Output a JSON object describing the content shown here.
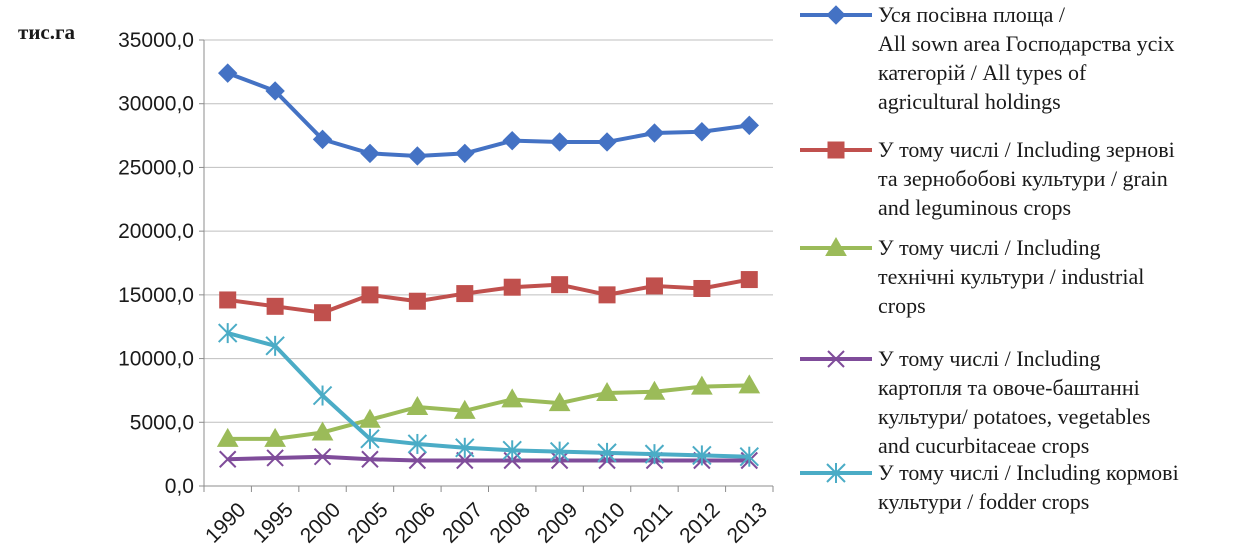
{
  "chart_data": {
    "type": "line",
    "title": "",
    "xlabel": "",
    "ylabel": "тис.га",
    "ylim": [
      0,
      35000
    ],
    "yticks": [
      "0,0",
      "5000,0",
      "10000,0",
      "15000,0",
      "20000,0",
      "25000,0",
      "30000,0",
      "35000,0"
    ],
    "grid": true,
    "legend_position": "right",
    "categories": [
      "1990",
      "1995",
      "2000",
      "2005",
      "2006",
      "2007",
      "2008",
      "2009",
      "2010",
      "2011",
      "2012",
      "2013"
    ],
    "series": [
      {
        "name": "Уся посівна площа / All sown area Господарства усіх категорій / All types of agricultural holdings",
        "legend_lines": [
          "Уся посівна площа /",
          "All sown area Господарства усіх",
          "категорій / All types of",
          "agricultural holdings"
        ],
        "color": "#4472C4",
        "marker": "diamond",
        "values": [
          32400,
          31000,
          27200,
          26100,
          25900,
          26100,
          27100,
          27000,
          27000,
          27700,
          27800,
          28300
        ]
      },
      {
        "name": "У тому числі / Including зернові та зернобобові культури / grain and leguminous crops",
        "legend_lines": [
          "У тому числі / Including зернові",
          "та зернобобові культури  / grain",
          "and leguminous crops"
        ],
        "color": "#C0504D",
        "marker": "square",
        "values": [
          14600,
          14100,
          13600,
          15000,
          14500,
          15100,
          15600,
          15800,
          15000,
          15700,
          15500,
          16200
        ]
      },
      {
        "name": "У тому числі / Including технічні культури / industrial crops",
        "legend_lines": [
          "У тому числі / Including",
          "технічні культури  / industrial",
          "crops"
        ],
        "color": "#9BBB59",
        "marker": "triangle",
        "values": [
          3700,
          3700,
          4200,
          5200,
          6200,
          5900,
          6800,
          6500,
          7300,
          7400,
          7800,
          7900
        ]
      },
      {
        "name": "У тому числі / Including картопля та овоче-баштанні культури/ potatoes, vegetables and cucurbitaceae crops",
        "legend_lines": [
          "У тому числі / Including",
          "картопля та овоче-баштанні",
          "культури/  potatoes, vegetables",
          "and cucurbitaceae crops"
        ],
        "color": "#7F4C9A",
        "marker": "x",
        "values": [
          2100,
          2200,
          2300,
          2100,
          2000,
          2000,
          2000,
          2000,
          2000,
          2000,
          2000,
          2000
        ]
      },
      {
        "name": "У тому числі / Including кормові культури / fodder crops",
        "legend_lines": [
          "У тому числі / Including кормові",
          "культури  / fodder crops"
        ],
        "color": "#4BACC6",
        "marker": "asterisk",
        "values": [
          12000,
          11000,
          7100,
          3700,
          3300,
          3000,
          2800,
          2700,
          2600,
          2500,
          2400,
          2300
        ]
      }
    ]
  }
}
